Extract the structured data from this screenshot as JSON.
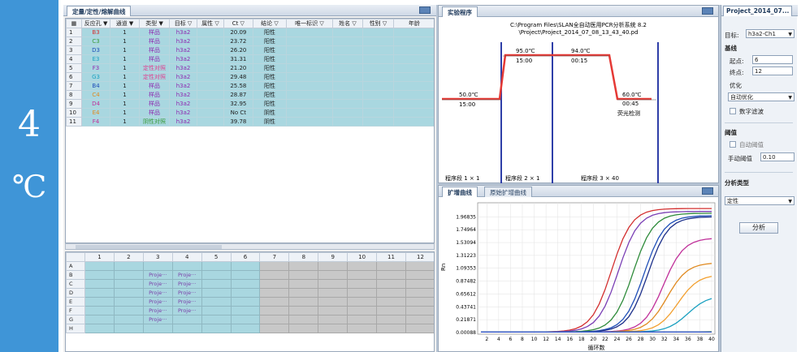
{
  "badge": {
    "number": "4",
    "unit": "℃"
  },
  "left": {
    "tab_label": "定量/定性/熔解曲线",
    "columns": [
      "反应孔 ▼",
      "通道 ▼",
      "类型 ▼",
      "目标 ▽",
      "属性 ▽",
      "Ct ▽",
      "结论 ▽",
      "唯一标识 ▽",
      "姓名 ▽",
      "性别 ▽",
      "年龄"
    ],
    "rows": [
      {
        "n": "1",
        "well": "B3",
        "well_color": "red",
        "ch": "1",
        "type": "样品",
        "type_color": "purple",
        "target": "h3a2",
        "attr": "",
        "ct": "20.09",
        "result": "阳性"
      },
      {
        "n": "2",
        "well": "C3",
        "well_color": "green",
        "ch": "1",
        "type": "样品",
        "type_color": "purple",
        "target": "h3a2",
        "attr": "",
        "ct": "23.72",
        "result": "阳性"
      },
      {
        "n": "3",
        "well": "D3",
        "well_color": "blue",
        "ch": "1",
        "type": "样品",
        "type_color": "purple",
        "target": "h3a2",
        "attr": "",
        "ct": "26.20",
        "result": "阳性"
      },
      {
        "n": "4",
        "well": "E3",
        "well_color": "cyan",
        "ch": "1",
        "type": "样品",
        "type_color": "purple",
        "target": "h3a2",
        "attr": "",
        "ct": "31.31",
        "result": "阳性"
      },
      {
        "n": "5",
        "well": "F3",
        "well_color": "purple",
        "ch": "1",
        "type": "定性对照",
        "type_color": "pink",
        "target": "h3a2",
        "attr": "",
        "ct": "21.20",
        "result": "阳性"
      },
      {
        "n": "6",
        "well": "G3",
        "well_color": "cyan",
        "ch": "1",
        "type": "定性对照",
        "type_color": "pink",
        "target": "h3a2",
        "attr": "",
        "ct": "29.48",
        "result": "阳性"
      },
      {
        "n": "7",
        "well": "B4",
        "well_color": "blue",
        "ch": "1",
        "type": "样品",
        "type_color": "purple",
        "target": "h3a2",
        "attr": "",
        "ct": "25.58",
        "result": "阳性"
      },
      {
        "n": "8",
        "well": "C4",
        "well_color": "orange",
        "ch": "1",
        "type": "样品",
        "type_color": "purple",
        "target": "h3a2",
        "attr": "",
        "ct": "28.87",
        "result": "阳性"
      },
      {
        "n": "9",
        "well": "D4",
        "well_color": "magenta",
        "ch": "1",
        "type": "样品",
        "type_color": "purple",
        "target": "h3a2",
        "attr": "",
        "ct": "32.95",
        "result": "阳性"
      },
      {
        "n": "10",
        "well": "E4",
        "well_color": "orange",
        "ch": "1",
        "type": "样品",
        "type_color": "purple",
        "target": "h3a2",
        "attr": "",
        "ct": "No Ct",
        "result": "阴性"
      },
      {
        "n": "11",
        "well": "F4",
        "well_color": "magenta",
        "ch": "1",
        "type": "阴性对照",
        "type_color": "green",
        "target": "h3a2",
        "attr": "",
        "ct": "39.78",
        "result": "阴性"
      }
    ],
    "plate_columns": [
      "1",
      "2",
      "3",
      "4",
      "5",
      "6",
      "7",
      "8",
      "9",
      "10",
      "11",
      "12"
    ],
    "plate_rows": [
      "A",
      "B",
      "C",
      "D",
      "E",
      "F",
      "G",
      "H"
    ],
    "plate_text": "Proje···"
  },
  "program": {
    "tab_label": "实验程序",
    "path_line1": "C:\\Program Files\\SLAN全自动医用PCR分析系统 8.2",
    "path_line2": "\\Project\\Project_2014_07_08_13_43_40.pd",
    "steps": [
      {
        "temp": "50.0℃",
        "time": "15:00"
      },
      {
        "temp": "95.0℃",
        "time": "15:00"
      },
      {
        "temp": "94.0℃",
        "time": "00:15"
      },
      {
        "temp": "60.0℃",
        "time": "00:45"
      }
    ],
    "detect_label": "荧光检测",
    "stages": [
      "程序段 1 × 1",
      "程序段 2 × 1",
      "程序段 3 × 40"
    ]
  },
  "curve": {
    "tab_active": "扩增曲线",
    "tab_inactive": "原始扩增曲线",
    "ylabel": "Rn",
    "xlabel": "循环数"
  },
  "chart_data": {
    "type": "line",
    "x": [
      1,
      2,
      3,
      4,
      5,
      6,
      7,
      8,
      9,
      10,
      11,
      12,
      13,
      14,
      15,
      16,
      17,
      18,
      19,
      20,
      21,
      22,
      23,
      24,
      25,
      26,
      27,
      28,
      29,
      30,
      31,
      32,
      33,
      34,
      35,
      36,
      37,
      38,
      39,
      40
    ],
    "xticks": [
      "2",
      "4",
      "6",
      "8",
      "10",
      "12",
      "14",
      "16",
      "18",
      "20",
      "22",
      "24",
      "26",
      "28",
      "30",
      "32",
      "34",
      "36",
      "38",
      "40"
    ],
    "yticks": [
      "0.00088",
      "0.21871",
      "0.43741",
      "0.65612",
      "0.87482",
      "1.09353",
      "1.31223",
      "1.53094",
      "1.74964",
      "1.96835"
    ],
    "xlim": [
      1,
      40
    ],
    "ylim": [
      0,
      2.18
    ],
    "xlabel": "循环数",
    "ylabel": "Rn",
    "series": [
      {
        "color": "#d32f2f",
        "ct": 20.09,
        "plateau": 2.1
      },
      {
        "color": "#7a3fb5",
        "ct": 21.2,
        "plateau": 2.05
      },
      {
        "color": "#2e8b3a",
        "ct": 23.72,
        "plateau": 2.02
      },
      {
        "color": "#1f4fb8",
        "ct": 25.58,
        "plateau": 1.98
      },
      {
        "color": "#1b2f8a",
        "ct": 26.2,
        "plateau": 1.96
      },
      {
        "color": "#c0309a",
        "ct": 28.87,
        "plateau": 1.6
      },
      {
        "color": "#e08a20",
        "ct": 29.48,
        "plateau": 1.18
      },
      {
        "color": "#f2a030",
        "ct": 31.31,
        "plateau": 0.98
      },
      {
        "color": "#1aa0c0",
        "ct": 32.95,
        "plateau": 0.62
      },
      {
        "color": "#8bc34a",
        "ct": 39.78,
        "plateau": 0.04
      },
      {
        "color": "#3355cc",
        "ct": 99,
        "plateau": 0.0
      }
    ]
  },
  "right": {
    "title": "Project_2014_07...",
    "target_label": "目标:",
    "target_value": "h3a2-Ch1",
    "baseline_label": "基线",
    "start_label": "起点:",
    "start_value": "6",
    "end_label": "终点:",
    "end_value": "12",
    "optimize_label": "优化",
    "optimize_value": "自动优化",
    "digital_filter_label": "数字滤波",
    "threshold_label": "阈值",
    "auto_threshold_label": "自动阈值",
    "manual_threshold_label": "手动阈值",
    "manual_threshold_value": "0.10",
    "analysis_type_label": "分析类型",
    "analysis_type_value": "定性",
    "analyze_button": "分析"
  },
  "colors": {
    "accent": "#3f95d7",
    "cell": "#a9d7e0"
  }
}
